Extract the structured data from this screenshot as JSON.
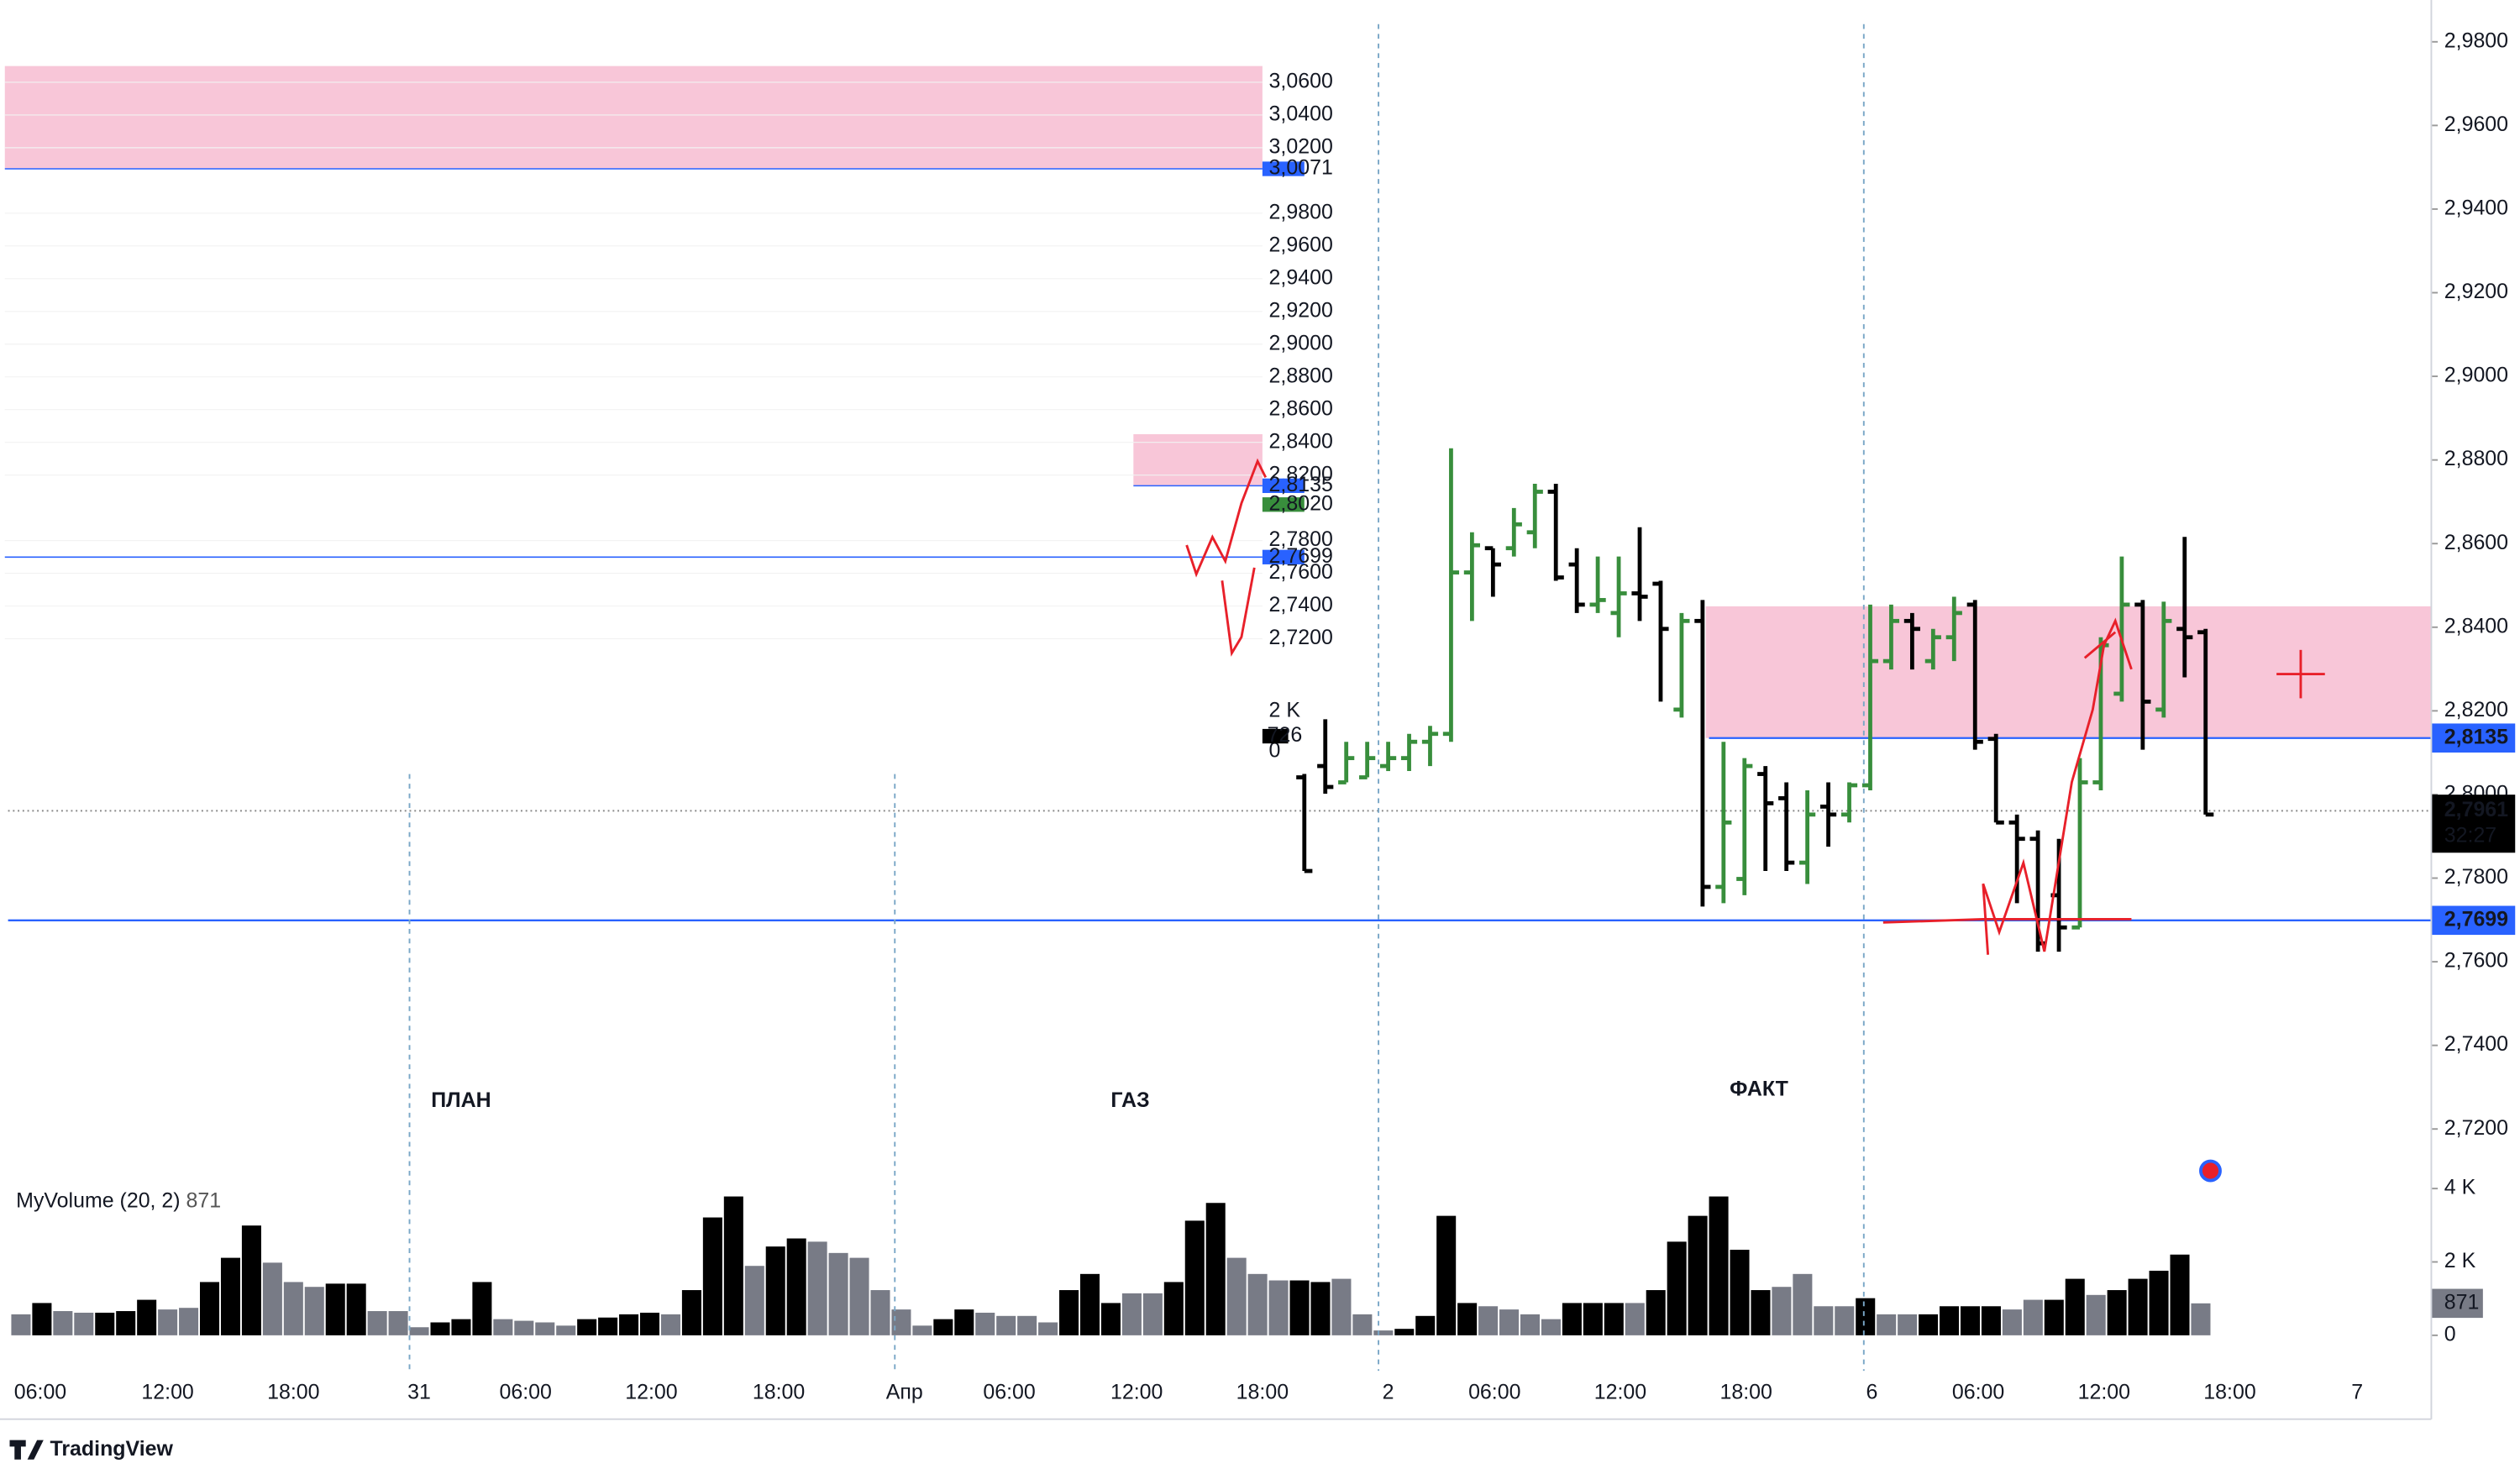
{
  "chart_data": {
    "type": "ohlc",
    "ylim": [
      2.71,
      2.99
    ],
    "yticks": [
      {
        "value": 2.98,
        "label": "2,9800"
      },
      {
        "value": 2.96,
        "label": "2,9600"
      },
      {
        "value": 2.94,
        "label": "2,9400"
      },
      {
        "value": 2.92,
        "label": "2,9200"
      },
      {
        "value": 2.9,
        "label": "2,9000"
      },
      {
        "value": 2.88,
        "label": "2,8800"
      },
      {
        "value": 2.86,
        "label": "2,8600"
      },
      {
        "value": 2.84,
        "label": "2,8400"
      },
      {
        "value": 2.82,
        "label": "2,8200"
      },
      {
        "value": 2.8,
        "label": "2,8000"
      },
      {
        "value": 2.78,
        "label": "2,7800"
      },
      {
        "value": 2.76,
        "label": "2,7600"
      },
      {
        "value": 2.74,
        "label": "2,7400"
      },
      {
        "value": 2.72,
        "label": "2,7200"
      }
    ],
    "up_color": "#388e3c",
    "down_color": "#000000",
    "open": [
      2.8041,
      2.8068,
      2.8029,
      2.8041,
      2.8068,
      2.8087,
      2.8126,
      2.8145,
      2.8531,
      2.8589,
      2.8589,
      2.8627,
      2.8724,
      2.855,
      2.8454,
      2.8434,
      2.8481,
      2.8504,
      2.8203,
      2.8415,
      2.7779,
      2.7798,
      2.8049,
      2.7991,
      2.7837,
      2.7971,
      2.7952,
      2.8022,
      2.8319,
      2.8415,
      2.8319,
      2.8376,
      2.8454,
      2.8133,
      2.7933,
      2.7894,
      2.7759,
      2.7682,
      2.8029,
      2.8241,
      2.8454,
      2.8203,
      2.8396,
      2.8388
    ],
    "high": [
      2.8049,
      2.818,
      2.8126,
      2.8126,
      2.8126,
      2.8145,
      2.8164,
      2.8828,
      2.8627,
      2.8589,
      2.8685,
      2.8743,
      2.8743,
      2.8589,
      2.8569,
      2.8569,
      2.8639,
      2.8511,
      2.8434,
      2.8465,
      2.8126,
      2.8087,
      2.8068,
      2.8029,
      2.801,
      2.8029,
      2.8029,
      2.8454,
      2.8454,
      2.8434,
      2.8396,
      2.8473,
      2.8465,
      2.8145,
      2.7952,
      2.7914,
      2.7894,
      2.8087,
      2.8376,
      2.8569,
      2.8465,
      2.8461,
      2.8616,
      2.8396
    ],
    "low": [
      2.7817,
      2.8002,
      2.8029,
      2.8041,
      2.8056,
      2.8056,
      2.8068,
      2.8126,
      2.8415,
      2.8473,
      2.8569,
      2.8589,
      2.8511,
      2.8434,
      2.8434,
      2.8376,
      2.8415,
      2.8222,
      2.8184,
      2.7732,
      2.774,
      2.7759,
      2.7817,
      2.7817,
      2.7786,
      2.7875,
      2.7933,
      2.801,
      2.8299,
      2.8299,
      2.8299,
      2.8319,
      2.8107,
      2.7933,
      2.774,
      2.7624,
      2.7624,
      2.7682,
      2.801,
      2.8222,
      2.8107,
      2.8184,
      2.828,
      2.7952
    ],
    "close": [
      2.7817,
      2.8018,
      2.8087,
      2.8087,
      2.8087,
      2.8126,
      2.8145,
      2.8531,
      2.8596,
      2.855,
      2.8646,
      2.8724,
      2.8519,
      2.8454,
      2.8465,
      2.8481,
      2.8473,
      2.8396,
      2.8415,
      2.7779,
      2.7933,
      2.8068,
      2.7979,
      2.7837,
      2.7952,
      2.7952,
      2.8022,
      2.8319,
      2.8415,
      2.8396,
      2.8376,
      2.8434,
      2.8126,
      2.7933,
      2.7894,
      2.7644,
      2.7682,
      2.8029,
      2.8357,
      2.8454,
      2.8222,
      2.8415,
      2.8376,
      2.7952
    ],
    "zone": {
      "from": 2.8135,
      "to": 2.845,
      "color": "#f8c6d8"
    },
    "levels": [
      {
        "value": 2.8135,
        "label": "2,8135",
        "color": "#2962ff"
      },
      {
        "value": 2.7699,
        "label": "2,7699",
        "color": "#2962ff"
      }
    ],
    "last_price": {
      "value": 2.7961,
      "label": "2,7961",
      "countdown": "32:27"
    },
    "x_labels": [
      "06:00",
      "12:00",
      "18:00",
      "31",
      "06:00",
      "12:00",
      "18:00",
      "Апр",
      "06:00",
      "12:00",
      "18:00",
      "2",
      "06:00",
      "12:00",
      "18:00",
      "6",
      "06:00",
      "12:00",
      "18:00",
      "7"
    ],
    "volume": {
      "name": "MyVolume",
      "params": "(20, 2)",
      "y2lim": [
        0,
        4747
      ],
      "y2ticks": [
        {
          "value": 4000,
          "label": "4 K"
        },
        {
          "value": 2000,
          "label": "2 K"
        },
        0
      ],
      "values": [
        572,
        880,
        660,
        616,
        616,
        660,
        968,
        704,
        748,
        1452,
        2112,
        2992,
        1980,
        1452,
        1320,
        1408,
        1408,
        660,
        660,
        220,
        352,
        440,
        1452,
        440,
        396,
        352,
        264,
        440,
        484,
        572,
        616,
        572,
        1232,
        3212,
        3784,
        1892,
        2420,
        2640,
        2552,
        2244,
        2112,
        1232,
        704,
        264,
        440,
        704,
        616,
        528,
        528,
        352,
        1232,
        1672,
        880,
        1144,
        1144,
        1452,
        3124,
        3608,
        2112,
        1672,
        1496,
        1496,
        1452,
        1540,
        572,
        132,
        176,
        528,
        3256,
        880,
        792,
        704,
        572,
        440,
        880,
        880,
        880,
        880,
        1232,
        2552,
        3256,
        3784,
        2332,
        1232,
        1320,
        1672,
        792,
        792,
        1012,
        572,
        572,
        572,
        792,
        792,
        792,
        704,
        968,
        968,
        1540,
        1100,
        1232,
        1540,
        1760,
        2200,
        871
      ],
      "colors": [
        "#787b86",
        "#000000",
        "#787b86",
        "#787b86",
        "#000000",
        "#000000",
        "#000000",
        "#787b86",
        "#787b86",
        "#000000",
        "#000000",
        "#000000",
        "#787b86",
        "#787b86",
        "#787b86",
        "#000000",
        "#000000",
        "#787b86",
        "#787b86",
        "#787b86",
        "#000000",
        "#000000",
        "#000000",
        "#787b86",
        "#787b86",
        "#787b86",
        "#787b86",
        "#000000",
        "#000000",
        "#000000",
        "#000000",
        "#787b86",
        "#000000",
        "#000000",
        "#000000",
        "#787b86",
        "#000000",
        "#000000",
        "#787b86",
        "#787b86",
        "#787b86",
        "#787b86",
        "#787b86",
        "#787b86",
        "#000000",
        "#000000",
        "#787b86",
        "#787b86",
        "#787b86",
        "#787b86",
        "#000000",
        "#000000",
        "#000000",
        "#787b86",
        "#787b86",
        "#000000",
        "#000000",
        "#000000",
        "#787b86",
        "#787b86",
        "#787b86",
        "#000000",
        "#000000",
        "#787b86",
        "#787b86",
        "#787b86",
        "#000000",
        "#000000",
        "#000000",
        "#000000",
        "#787b86",
        "#787b86",
        "#787b86",
        "#787b86",
        "#000000",
        "#000000",
        "#000000",
        "#787b86",
        "#000000",
        "#000000",
        "#000000",
        "#000000",
        "#000000",
        "#000000",
        "#787b86",
        "#787b86",
        "#787b86",
        "#787b86",
        "#000000",
        "#787b86",
        "#787b86",
        "#000000",
        "#000000",
        "#000000",
        "#000000",
        "#787b86",
        "#787b86",
        "#000000",
        "#000000",
        "#787b86",
        "#000000",
        "#000000",
        "#000000",
        "#000000",
        "#787b86"
      ]
    },
    "annotations": [
      "ПЛАН",
      "ГАЗ",
      "ФАКТ"
    ],
    "brand": "TradingView",
    "inset": {
      "ylim": [
        2.7,
        3.08
      ],
      "yticks": [
        {
          "value": 3.06,
          "label": "3,0600"
        },
        {
          "value": 3.04,
          "label": "3,0400"
        },
        {
          "value": 3.02,
          "label": "3,0200"
        },
        {
          "value": 2.98,
          "label": "2,9800"
        },
        {
          "value": 2.96,
          "label": "2,9600"
        },
        {
          "value": 2.94,
          "label": "2,9400"
        },
        {
          "value": 2.92,
          "label": "2,9200"
        },
        {
          "value": 2.9,
          "label": "2,9000"
        },
        {
          "value": 2.88,
          "label": "2,8800"
        },
        {
          "value": 2.86,
          "label": "2,8600"
        },
        {
          "value": 2.84,
          "label": "2,8400"
        },
        {
          "value": 2.82,
          "label": "2,8200"
        },
        {
          "value": 2.78,
          "label": "2,7800"
        },
        {
          "value": 2.76,
          "label": "2,7600"
        },
        {
          "value": 2.74,
          "label": "2,7400"
        },
        {
          "value": 2.72,
          "label": "2,7200"
        }
      ],
      "zones": [
        {
          "from": 3.0071,
          "to": 3.0699
        },
        {
          "from": 2.8135,
          "to": 2.845
        }
      ],
      "levels": [
        {
          "value": 3.0071,
          "label": "3,0071"
        },
        {
          "value": 2.8135,
          "label": "2,8135"
        },
        {
          "value": 2.7699,
          "label": "2,7699"
        }
      ],
      "last_price": {
        "value": 2.802,
        "label": "2,8020"
      },
      "volume_labels": [
        "2 K",
        "0"
      ],
      "volume_last": 726
    }
  }
}
